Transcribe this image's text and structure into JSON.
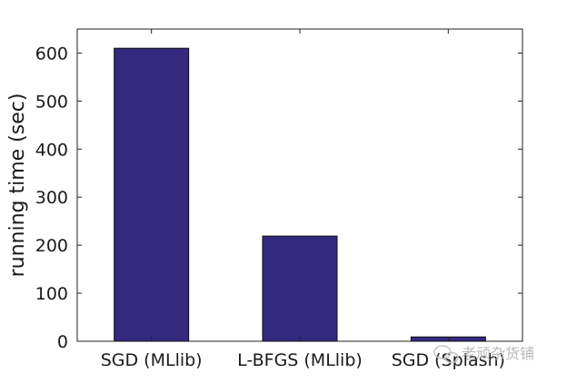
{
  "chart_data": {
    "type": "bar",
    "title": "",
    "xlabel": "",
    "ylabel": "running time (sec)",
    "categories": [
      "SGD (MLlib)",
      "L-BFGS (MLlib)",
      "SGD (Splash)"
    ],
    "values": [
      610,
      219,
      9
    ],
    "ylim": [
      0,
      650
    ],
    "yticks": [
      0,
      100,
      200,
      300,
      400,
      500,
      600
    ],
    "bar_color": "#33297f",
    "grid": false,
    "legend": "none"
  },
  "watermark": {
    "text": "老顽杂货铺",
    "icon": "wechat-bubble-icon"
  }
}
